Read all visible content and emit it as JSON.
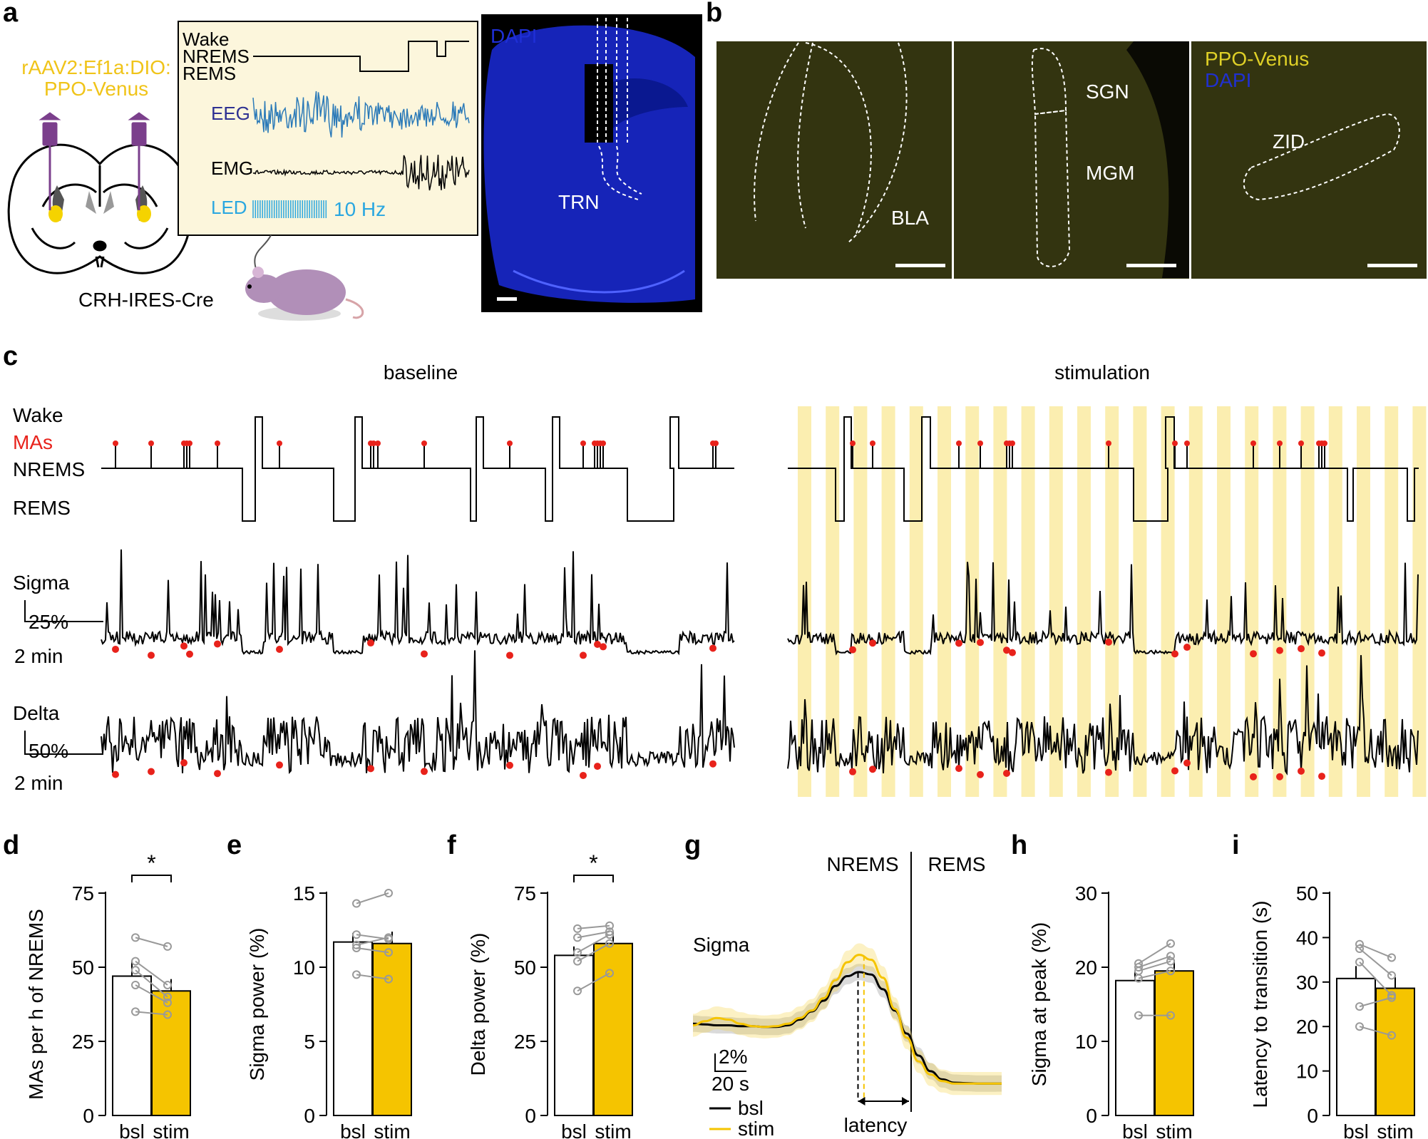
{
  "panel_labels": {
    "a": "a",
    "b": "b",
    "c": "c",
    "d": "d",
    "e": "e",
    "f": "f",
    "g": "g",
    "h": "h",
    "i": "i"
  },
  "panel_a": {
    "virus": "rAAV2:Ef1a:DIO:",
    "virus2": "PPO-Venus",
    "mouse_line": "CRH-IRES-Cre",
    "trace_labels": {
      "wake": "Wake",
      "nrems": "NREMS",
      "rems": "REMS",
      "eeg": "EEG",
      "emg": "EMG",
      "led": "LED"
    },
    "led_freq": "10 Hz",
    "histology_stain": "DAPI",
    "region": "TRN",
    "colors": {
      "eeg": "#2b7ab8",
      "led": "#2aa7e0",
      "eeg_label": "#2e3192",
      "venus": "#f5d300",
      "virus_text": "#f0c419",
      "injector": "#7b3f8c"
    }
  },
  "panel_b": {
    "stain1": "PPO-Venus",
    "stain2": "DAPI",
    "regions": [
      "BLA",
      "SGN",
      "MGM",
      "ZID"
    ]
  },
  "panel_c": {
    "baseline_title": "baseline",
    "stim_title": "stimulation",
    "state_labels": {
      "wake": "Wake",
      "mas": "MAs",
      "nrems": "NREMS",
      "rems": "REMS"
    },
    "sigma_label": "Sigma",
    "sigma_scale": "25%",
    "delta_label": "Delta",
    "delta_scale": "50%",
    "time_scale": "2 min",
    "colors": {
      "ma": "#e8221b",
      "stim_band": "#fbeeb0"
    }
  },
  "chart_data": [
    {
      "type": "bar",
      "panel": "d",
      "ylabel": "MAs per h of NREMS",
      "categories": [
        "bsl",
        "stim"
      ],
      "values": [
        47,
        42
      ],
      "errors": [
        5,
        4
      ],
      "ylim": [
        0,
        75
      ],
      "yticks": [
        0,
        25,
        50,
        75
      ],
      "paired": [
        [
          60,
          57
        ],
        [
          52,
          44
        ],
        [
          49,
          40
        ],
        [
          44,
          38
        ],
        [
          35,
          34
        ]
      ],
      "significance": "*"
    },
    {
      "type": "bar",
      "panel": "e",
      "ylabel": "Sigma power (%)",
      "categories": [
        "bsl",
        "stim"
      ],
      "values": [
        11.7,
        11.6
      ],
      "errors": [
        0.6,
        0.8
      ],
      "ylim": [
        0,
        15
      ],
      "yticks": [
        0,
        5,
        10,
        15
      ],
      "paired": [
        [
          14.3,
          15.0
        ],
        [
          12.2,
          11.9
        ],
        [
          11.3,
          11.0
        ],
        [
          11.5,
          12.0
        ],
        [
          9.5,
          9.2
        ]
      ]
    },
    {
      "type": "bar",
      "panel": "f",
      "ylabel": "Delta power (%)",
      "categories": [
        "bsl",
        "stim"
      ],
      "values": [
        54,
        58
      ],
      "errors": [
        3,
        4
      ],
      "ylim": [
        0,
        75
      ],
      "yticks": [
        0,
        25,
        50,
        75
      ],
      "paired": [
        [
          63,
          64
        ],
        [
          60,
          62
        ],
        [
          55,
          61
        ],
        [
          52,
          58
        ],
        [
          42,
          48
        ]
      ],
      "significance": "*"
    },
    {
      "type": "line",
      "panel": "g",
      "title": "Sigma",
      "state_labels": [
        "NREMS",
        "REMS"
      ],
      "scale_y": "2%",
      "scale_x": "20 s",
      "annotation": "latency",
      "series": [
        {
          "name": "bsl",
          "color": "#000000",
          "values": [
            11.2,
            11.1,
            11.0,
            11.0,
            10.9,
            10.9,
            10.8,
            10.8,
            11.0,
            11.7,
            12.7,
            14.0,
            15.8,
            17.0,
            17.5,
            17.2,
            15.4,
            12.8,
            10.0,
            7.3,
            5.4,
            4.4,
            4.0,
            3.95,
            3.9,
            3.9,
            3.9
          ],
          "band": 1.0
        },
        {
          "name": "stim",
          "color": "#f5c400",
          "values": [
            11.0,
            11.5,
            11.9,
            11.7,
            11.2,
            10.9,
            10.8,
            10.9,
            11.2,
            11.9,
            12.8,
            14.3,
            16.5,
            18.7,
            19.6,
            19.0,
            16.8,
            13.0,
            9.5,
            6.6,
            5.0,
            4.2,
            3.9,
            3.9,
            3.9,
            3.9,
            3.9
          ],
          "band": 1.4
        }
      ]
    },
    {
      "type": "bar",
      "panel": "h",
      "ylabel": "Sigma at peak (%)",
      "categories": [
        "bsl",
        "stim"
      ],
      "values": [
        18.2,
        19.5
      ],
      "errors": [
        1.2,
        1.5
      ],
      "ylim": [
        0,
        30
      ],
      "yticks": [
        0,
        10,
        20,
        30
      ],
      "paired": [
        [
          20.5,
          23.2
        ],
        [
          20.0,
          21.5
        ],
        [
          19.5,
          20.8
        ],
        [
          18.5,
          19.5
        ],
        [
          13.5,
          13.5
        ]
      ]
    },
    {
      "type": "bar",
      "panel": "i",
      "ylabel": "Latency to transition (s)",
      "categories": [
        "bsl",
        "stim"
      ],
      "values": [
        30.8,
        28.6
      ],
      "errors": [
        2.8,
        2.5
      ],
      "ylim": [
        0,
        50
      ],
      "yticks": [
        0,
        10,
        20,
        30,
        40,
        50
      ],
      "paired": [
        [
          38.5,
          35.5
        ],
        [
          37.5,
          31.5
        ],
        [
          34.5,
          27
        ],
        [
          24.5,
          26.5
        ],
        [
          20.0,
          18.0
        ]
      ]
    }
  ]
}
